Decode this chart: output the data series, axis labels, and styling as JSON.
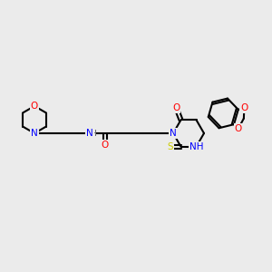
{
  "bg_color": "#ebebeb",
  "atom_colors": {
    "O": "#ff0000",
    "N": "#0000ff",
    "S": "#cccc00",
    "C": "#000000",
    "H": "#555555"
  },
  "bond_color": "#000000"
}
